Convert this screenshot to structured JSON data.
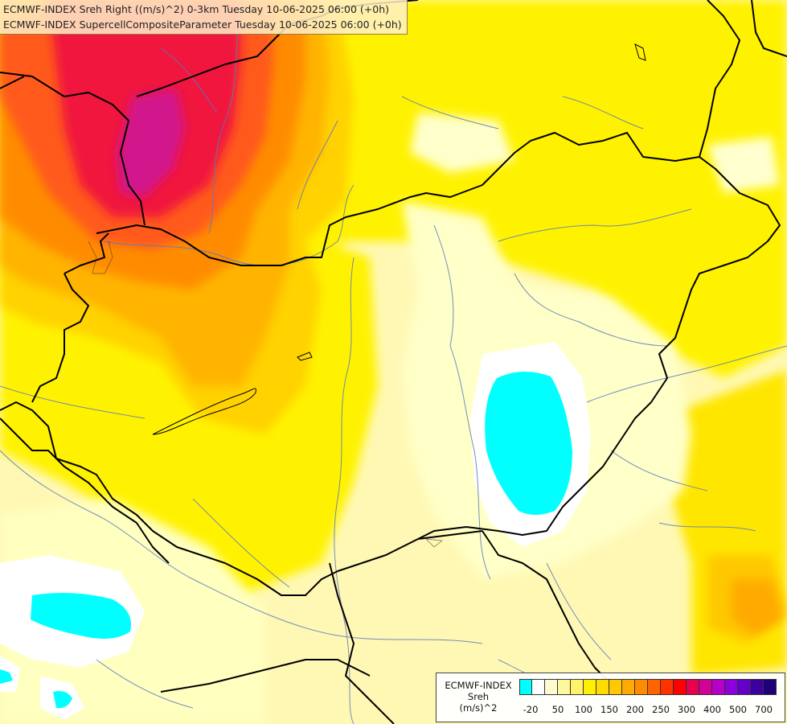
{
  "header": {
    "line1": "ECMWF-INDEX Sreh Right ((m/s)^2) 0-3km Tuesday 10-06-2025 06:00 (+0h)",
    "line2": "ECMWF-INDEX SupercellCompositeParameter Tuesday 10-06-2025 06:00 (+0h)"
  },
  "legend": {
    "title_line1": "ECMWF-INDEX",
    "title_line2": "Sreh",
    "title_line3": "(m/s)^2",
    "colors": [
      "#00ffff",
      "#ffffff",
      "#fffbd0",
      "#fff6a0",
      "#fff36a",
      "#fff000",
      "#ffdc00",
      "#ffc800",
      "#ffaa00",
      "#ff8c00",
      "#ff6400",
      "#ff3200",
      "#ff0000",
      "#e60050",
      "#d20096",
      "#b400c8",
      "#8c00dc",
      "#6400c8",
      "#3c00a0",
      "#1e0078"
    ],
    "tick_labels": [
      "-20",
      "50",
      "100",
      "150",
      "200",
      "250",
      "300",
      "400",
      "500",
      "700"
    ]
  },
  "map_colors": {
    "base": "#fff8b4",
    "pale_yellow": "#ffffc8",
    "yellow": "#fff200",
    "gold": "#ffd200",
    "orange": "#ffb400",
    "dark_orange": "#ff8c00",
    "red_orange": "#ff5a1e",
    "red": "#f0143c",
    "magenta": "#d2148c",
    "cyan": "#00ffff",
    "white": "#ffffff",
    "border": "#000000",
    "river": "#5a7abf"
  }
}
